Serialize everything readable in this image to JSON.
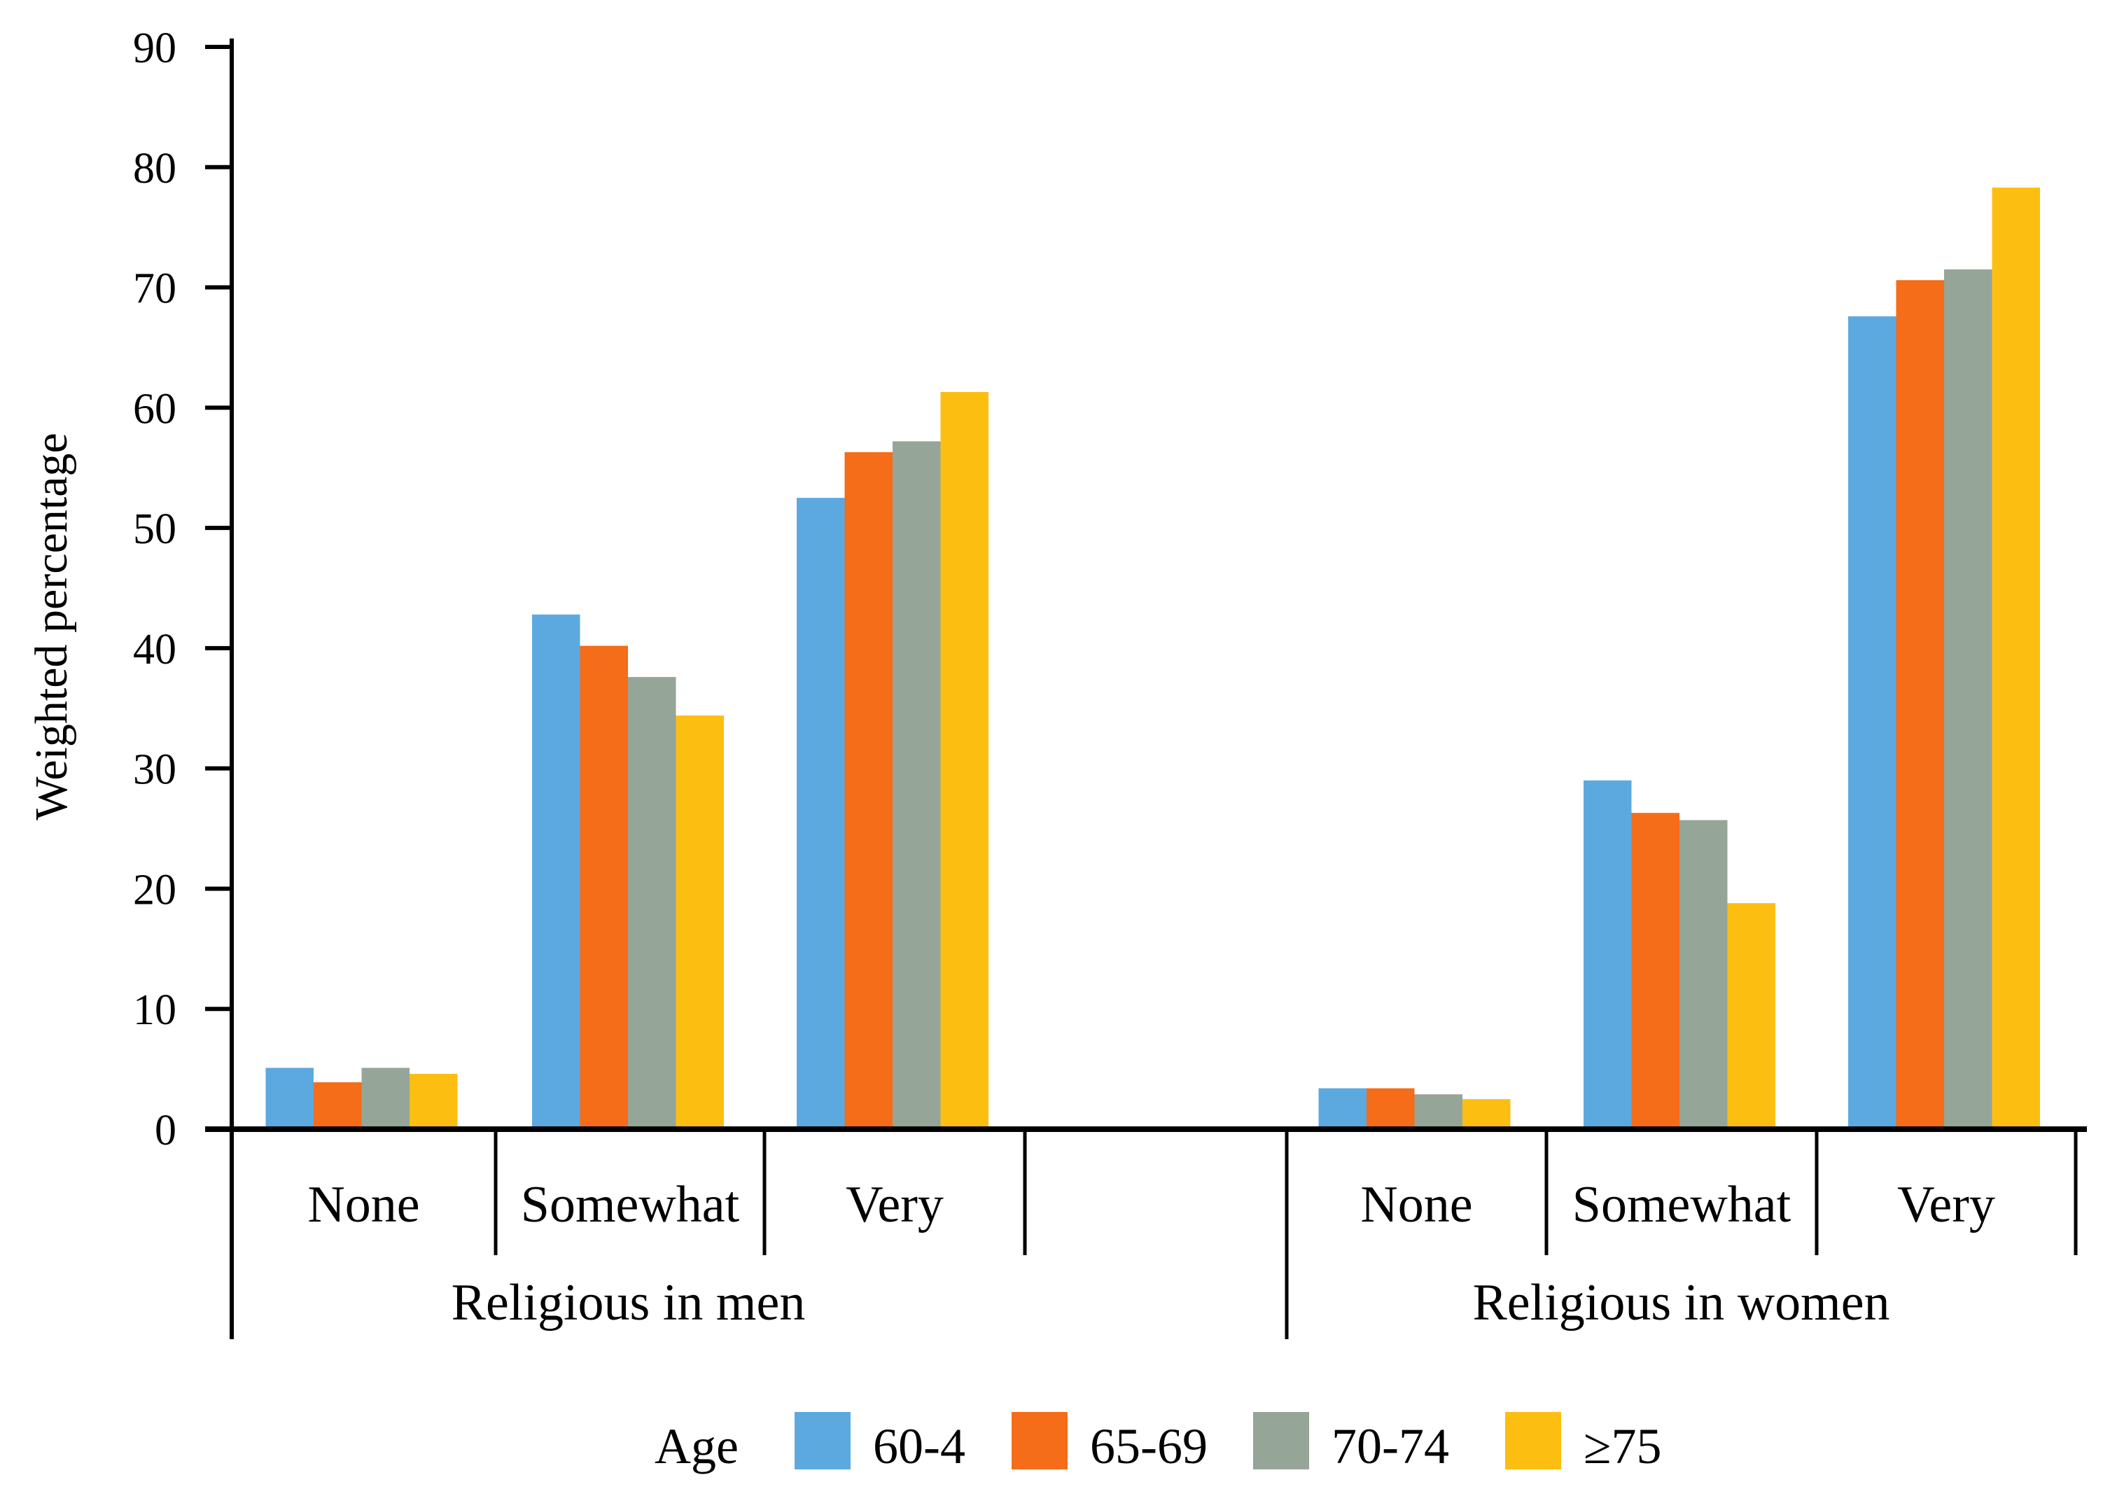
{
  "chart_data": {
    "type": "bar",
    "title": "",
    "xlabel": "",
    "ylabel": "Weighted percentage",
    "ylim": [
      0,
      90
    ],
    "yticks": [
      0,
      10,
      20,
      30,
      40,
      50,
      60,
      70,
      80,
      90
    ],
    "grid": false,
    "groups": [
      {
        "label": "Religious in men",
        "categories": [
          "None",
          "Somewhat",
          "Very"
        ]
      },
      {
        "label": "Religious in women",
        "categories": [
          "None",
          "Somewhat",
          "Very"
        ]
      }
    ],
    "categories": [
      "None",
      "Somewhat",
      "Very",
      "",
      "None",
      "Somewhat",
      "Very"
    ],
    "series": [
      {
        "name": "60-4",
        "color": "#5CA9E0",
        "values": [
          5.1,
          42.8,
          52.5,
          null,
          3.4,
          29.0,
          67.6
        ]
      },
      {
        "name": "65-69",
        "color": "#F56C19",
        "values": [
          3.9,
          40.2,
          56.3,
          null,
          3.4,
          26.3,
          70.6
        ]
      },
      {
        "name": "70-74",
        "color": "#95A598",
        "values": [
          5.1,
          37.6,
          57.2,
          null,
          2.9,
          25.7,
          71.5
        ]
      },
      {
        "name": "≥75",
        "color": "#FDBE12",
        "values": [
          4.6,
          34.4,
          61.3,
          null,
          2.5,
          18.8,
          78.3
        ]
      }
    ],
    "legend": {
      "title": "Age",
      "position": "bottom-center"
    }
  }
}
